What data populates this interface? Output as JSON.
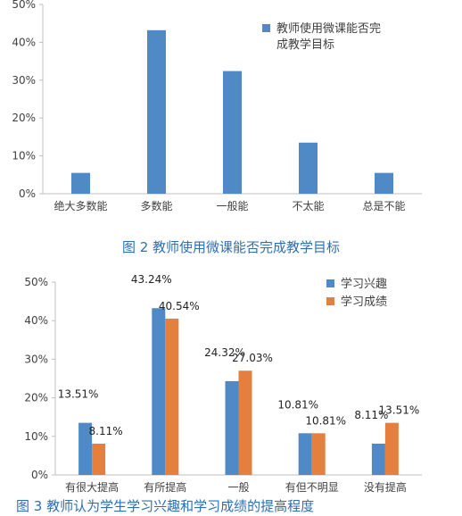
{
  "colors": {
    "blue": "#4f8ac6",
    "orange": "#e57f3e",
    "axis": "#bfbfbf",
    "caption": "#2f6fb0"
  },
  "chart_data": [
    {
      "type": "bar",
      "caption": "图 2 教师使用微课能否完成教学目标",
      "categories": [
        "绝大多数能",
        "多数能",
        "一般能",
        "不太能",
        "总是不能"
      ],
      "series": [
        {
          "name": "教师使用微课能否完成教学目标",
          "values": [
            5.5,
            43.2,
            32.4,
            13.5,
            5.5
          ]
        }
      ],
      "yticks": [
        "0%",
        "10%",
        "20%",
        "30%",
        "40%",
        "50%"
      ],
      "ylim": [
        0,
        50
      ],
      "legend": "top-right",
      "grid": false
    },
    {
      "type": "bar",
      "caption": "图 3 教师认为学生学习兴趣和学习成绩的提高程度",
      "categories": [
        "有很大提高",
        "有所提高",
        "一般",
        "有但不明显",
        "没有提高"
      ],
      "series": [
        {
          "name": "学习兴趣",
          "values": [
            13.51,
            43.24,
            24.32,
            10.81,
            8.11
          ],
          "labels": [
            "13.51%",
            "43.24%",
            "24.32%",
            "10.81%",
            "8.11%"
          ]
        },
        {
          "name": "学习成绩",
          "values": [
            8.11,
            40.54,
            27.03,
            10.81,
            13.51
          ],
          "labels": [
            "8.11%",
            "40.54%",
            "27.03%",
            "10.81%",
            "13.51%"
          ]
        }
      ],
      "yticks": [
        "0%",
        "10%",
        "20%",
        "30%",
        "40%",
        "50%"
      ],
      "ylim": [
        0,
        50
      ],
      "legend": "top-right",
      "grid": false
    }
  ]
}
